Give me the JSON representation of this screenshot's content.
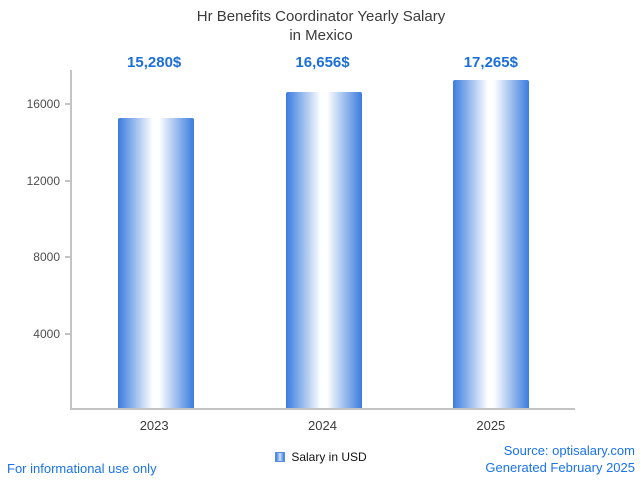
{
  "title": {
    "line1": "Hr Benefits Coordinator Yearly Salary",
    "line2": "in Mexico"
  },
  "chart_data": {
    "type": "bar",
    "title": "Hr Benefits Coordinator Yearly Salary in Mexico",
    "categories": [
      "2023",
      "2024",
      "2025"
    ],
    "values": [
      15280,
      16656,
      17265
    ],
    "value_labels": [
      "15,280$",
      "16,656$",
      "17,265$"
    ],
    "series_name": "Salary in USD",
    "xlabel": "",
    "ylabel": "",
    "ylim": [
      0,
      17800
    ],
    "yticks": [
      4000,
      8000,
      12000,
      16000
    ],
    "grid": false,
    "legend_position": "bottom",
    "bar_gradient": [
      "#3a7cde",
      "#ffffff",
      "#3a7cde"
    ],
    "value_label_color": "#1b6fd8"
  },
  "legend": {
    "label": "Salary in USD"
  },
  "footer": {
    "left": "For informational use only",
    "source": "Source: optisalary.com",
    "generated": "Generated February 2025"
  },
  "colors": {
    "accent_blue": "#1a73e8",
    "bar_edge_blue": "#3a7cde",
    "axis_gray": "#c3c3c3",
    "title_gray": "#3b3b3b"
  }
}
